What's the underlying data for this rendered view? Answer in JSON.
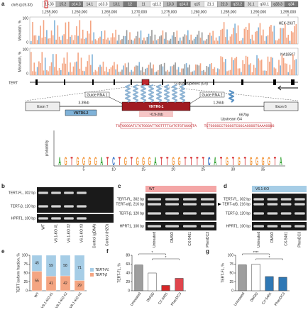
{
  "panel_labels": [
    "a",
    "b",
    "c",
    "d",
    "e",
    "f",
    "g"
  ],
  "a": {
    "chromosome": "chr5 (p15.33)",
    "bands": [
      "15.33",
      "15.2",
      "p14.3",
      "14.1",
      "p13.3",
      "13.1",
      "12",
      "11",
      "q11.2",
      "13.3",
      "q14.3",
      "q15",
      "21.1",
      "22.3",
      "q23.2",
      "31.1",
      "q33.1",
      "q33.3",
      "q34"
    ],
    "coordinates": [
      "1,255,000",
      "1,260,000",
      "1,265,000",
      "1,270,000",
      "1,275,000",
      "1,280,000",
      "1,285,000",
      "1,290,000",
      "1,295,000"
    ],
    "track_axis_label": "Mismatch, %",
    "track_ticks": [
      "100",
      "0"
    ],
    "tracks": [
      "HEK-293T",
      "NA18507"
    ],
    "gene": "TERT",
    "exons": [
      "Exon 7",
      "Exon 6"
    ],
    "vntr6_2": "VNTR6-2",
    "vntr6_1": "VNTR6-1",
    "vntr6_1_size": "~0.9-2kb",
    "dist_left": "3.39kb",
    "dist_right": "1.26kb",
    "dist_g4": "667bp",
    "guide_1": "Guide RNA 1",
    "guide_2": "Guide RNA 2",
    "g4": "G-quadruplexes (G4)",
    "upstream_g4": "Upstream G4",
    "sequence_vntr": "TGTGGGGATCTGTGGGATTGGTTTTCATGTGTGGGGTA",
    "sequence_upstream": "TCTGGGGCCTGGGGTCGGCAGGGGTGAAAGGGG",
    "logo_axis_label": "probability",
    "logo_letters": [
      "A",
      "G",
      "T",
      "G",
      "G",
      "G",
      "G",
      "A",
      "T",
      "C",
      "T",
      "G",
      "T",
      "G",
      "G",
      "G",
      "A",
      "T",
      "T",
      "G",
      "G",
      "T",
      "T",
      "T",
      "T",
      "C",
      "A",
      "T",
      "G",
      "T",
      "G",
      "T",
      "G",
      "G",
      "G",
      "G",
      "T",
      "A"
    ],
    "logo_ticks": [
      5,
      10,
      15,
      20,
      25,
      30,
      35
    ]
  },
  "b": {
    "bands": [
      "TERT-FL, 302 bp",
      "TERT-β, 120 bp",
      "HPRT1, 100 bp"
    ],
    "lanes": [
      "WT",
      "V6.1-KO #1",
      "V6.1-KO #2",
      "V6.1-KO #3",
      "Control (gDNA)",
      "Control (H2O)"
    ]
  },
  "c": {
    "condition": "WT",
    "bands": [
      "TERT-FL, 302 bp",
      "TERT-α/β, 216 bp",
      "TERT-β, 120 bp",
      "HPRT1, 100 bp"
    ],
    "lanes": [
      "Untreated",
      "DMSO",
      "CX-5461",
      "PhenDC3"
    ]
  },
  "d": {
    "condition": "V6.1-KO",
    "bands": [
      "TERT-FL, 302 bp",
      "TERT-α/β, 216 bp",
      "TERT-β, 120 bp",
      "HPRT1, 100 bp"
    ],
    "lanes": [
      "Untreated",
      "DMSO",
      "CX-5461",
      "PhenDC3"
    ]
  },
  "chart_data": [
    {
      "type": "bar",
      "stacked": true,
      "ylabel": "TERT isoform fraction, %",
      "categories": [
        "WT",
        "V6.1-KO #1",
        "V6.1-KO #2",
        "V6.1-KO #3"
      ],
      "series": [
        {
          "name": "TERT-FL",
          "color": "#a6cde6",
          "values": [
            45,
            59,
            58,
            71
          ]
        },
        {
          "name": "TERT-β",
          "color": "#f4a582",
          "values": [
            55,
            41,
            42,
            29
          ]
        }
      ],
      "ylim": [
        0,
        100
      ],
      "yticks": [
        0,
        25,
        50,
        75,
        100
      ],
      "legend": "right"
    },
    {
      "type": "bar",
      "ylabel": "TERT-FL, %",
      "categories": [
        "Untreated",
        "DMSO",
        "CX-5461",
        "PhenDC3"
      ],
      "values": [
        58,
        40,
        12,
        28
      ],
      "colors": [
        "#9e9e9e",
        "#ffffff",
        "#d62728",
        "#e0454d"
      ],
      "ylim": [
        0,
        80
      ],
      "yticks": [
        0,
        20,
        40,
        60,
        80
      ],
      "annotations": [
        "*",
        "*"
      ]
    },
    {
      "type": "bar",
      "ylabel": "TERT-FL, %",
      "categories": [
        "Untreated",
        "DMSO",
        "CX-5461",
        "PhenDC3"
      ],
      "values": [
        73,
        75,
        40,
        38
      ],
      "colors": [
        "#9e9e9e",
        "#ffffff",
        "#2f78b5",
        "#2f78b5"
      ],
      "ylim": [
        0,
        100
      ],
      "yticks": [
        0,
        25,
        50,
        75,
        100
      ],
      "annotations": [
        "****",
        "*"
      ]
    }
  ]
}
